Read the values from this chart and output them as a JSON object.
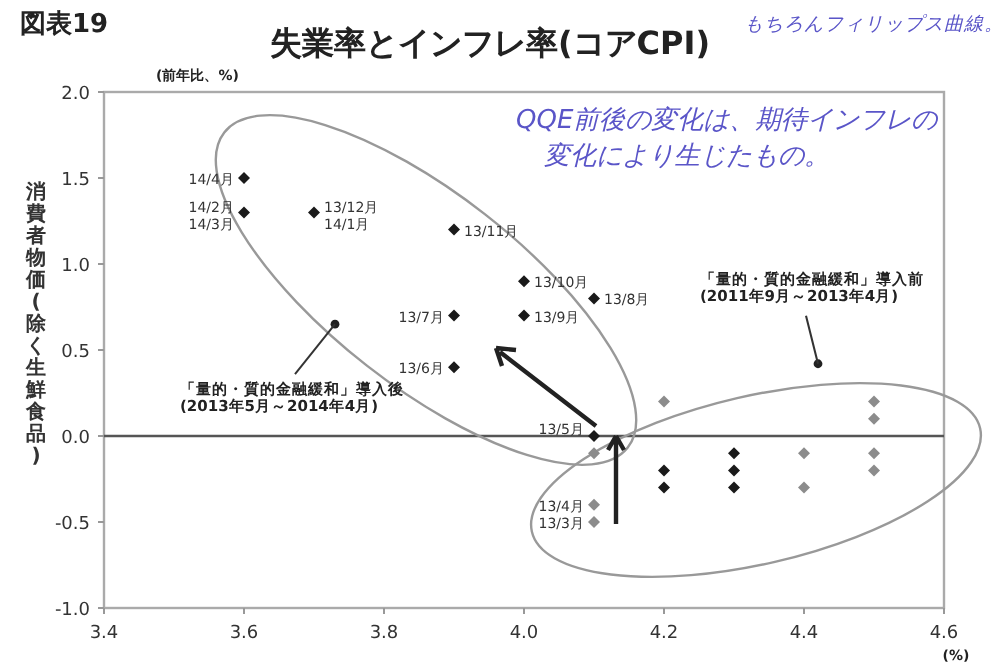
{
  "chart_data": {
    "type": "scatter",
    "title": "失業率とインフレ率(コアCPI)",
    "ylabel": "消費者物価(除く生鮮食品)",
    "xlim": [
      3.4,
      4.6
    ],
    "ylim": [
      -1.0,
      2.0
    ],
    "xticks": [
      3.4,
      3.6,
      3.8,
      {
        "value": 4.0,
        "label": "4.0"
      },
      4.2,
      4.4,
      4.6
    ],
    "yticks": [
      {
        "value": -1.0,
        "label": "-1.0"
      },
      -0.5,
      {
        "value": 0.0,
        "label": "0.0"
      },
      0.5,
      {
        "value": 1.0,
        "label": "1.0"
      },
      1.5,
      {
        "value": 2.0,
        "label": "2.0"
      }
    ],
    "grid": false,
    "marker": "diamond",
    "ref_lines": [
      {
        "axis": "y",
        "value": 0,
        "color": "#555555"
      }
    ],
    "series": [
      {
        "x": [
          3.6,
          3.6,
          3.7,
          3.9,
          3.9,
          3.9,
          4.0,
          4.0,
          4.1,
          4.1,
          4.2,
          4.2,
          4.3,
          4.3,
          4.3
        ],
        "values": [
          1.5,
          1.3,
          1.3,
          1.2,
          0.7,
          0.4,
          0.9,
          0.7,
          0.8,
          0.0,
          -0.2,
          -0.3,
          -0.1,
          -0.2,
          -0.3
        ],
        "color": "#1a1a1a"
      },
      {
        "x": [
          4.1,
          4.1,
          4.1,
          4.2,
          4.4,
          4.4,
          4.5,
          4.5,
          4.5,
          4.5
        ],
        "values": [
          -0.1,
          -0.4,
          -0.5,
          0.2,
          -0.1,
          -0.3,
          0.2,
          0.1,
          -0.1,
          -0.2
        ],
        "color": "#8c8c8c"
      }
    ],
    "annotations": [
      "図表19",
      "(前年比、%)",
      "(%)",
      {
        "text": "14/4月",
        "x": 3.6,
        "y": 1.5
      },
      {
        "text": "14/2月\n14/3月",
        "x": 3.6,
        "y": 1.3
      },
      {
        "text": "13/12月\n14/1月",
        "x": 3.7,
        "y": 1.3
      },
      {
        "text": "13/11月",
        "x": 3.9,
        "y": 1.2
      },
      {
        "text": "13/7月",
        "x": 3.9,
        "y": 0.7
      },
      {
        "text": "13/6月",
        "x": 3.9,
        "y": 0.4
      },
      {
        "text": "13/10月",
        "x": 4.0,
        "y": 0.9
      },
      {
        "text": "13/9月",
        "x": 4.0,
        "y": 0.7
      },
      {
        "text": "13/8月",
        "x": 4.1,
        "y": 0.8
      },
      {
        "text": "13/5月",
        "x": 4.1,
        "y": 0.0
      },
      {
        "text": "13/4月",
        "x": 4.1,
        "y": -0.4
      },
      {
        "text": "13/3月",
        "x": 4.1,
        "y": -0.5
      },
      "「量的・質的金融緩和」導入後\n(2013年5月～2014年4月)",
      "「量的・質的金融緩和」導入前\n(2011年9月～2013年4月)",
      "もちろんフィリップス曲線。",
      "QQE前後の変化は、期待インフレの",
      "変化により生じたもの。"
    ]
  }
}
